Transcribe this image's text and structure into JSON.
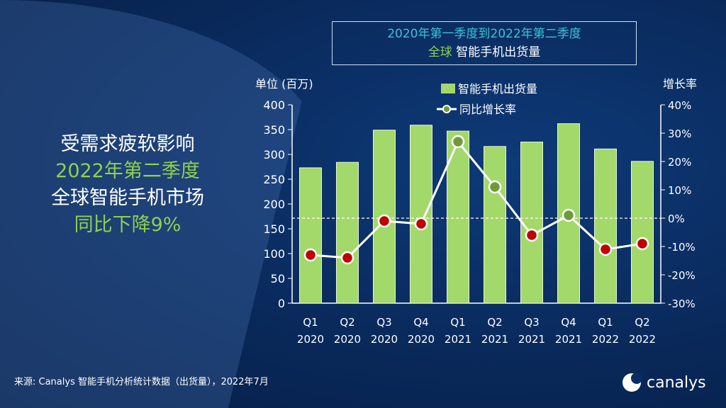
{
  "title": {
    "line1": "2020年第一季度到2022年第二季度",
    "line2_highlight": "全球",
    "line2_rest": " 智能手机出货量"
  },
  "headline": {
    "line1": "受需求疲软影响",
    "line2": "2022年第二季度",
    "line3": "全球智能手机市场",
    "line4": "同比下降9%"
  },
  "source": "来源: Canalys 智能手机分析统计数据（出货量），2022年7月",
  "logo": "canalys",
  "colors": {
    "bar": "#a3d86a",
    "line": "#ffffff",
    "positive_point": "#6f9a3a",
    "negative_point": "#c00000",
    "zero_line": "#ffffff"
  },
  "chart_data": {
    "type": "bar+line",
    "categories": [
      [
        "Q1",
        "2020"
      ],
      [
        "Q2",
        "2020"
      ],
      [
        "Q3",
        "2020"
      ],
      [
        "Q4",
        "2020"
      ],
      [
        "Q1",
        "2021"
      ],
      [
        "Q2",
        "2021"
      ],
      [
        "Q3",
        "2021"
      ],
      [
        "Q4",
        "2021"
      ],
      [
        "Q1",
        "2022"
      ],
      [
        "Q2",
        "2022"
      ]
    ],
    "ylabel_left": "单位 (百万)",
    "ylabel_right": "增长率",
    "ylim_left": [
      0,
      400
    ],
    "yticks_left": [
      "0",
      "50",
      "100",
      "150",
      "200",
      "250",
      "300",
      "350",
      "400"
    ],
    "ylim_right": [
      -30,
      40
    ],
    "yticks_right": [
      "-30%",
      "-20%",
      "-10%",
      "0%",
      "10%",
      "20%",
      "30%",
      "40%"
    ],
    "legend": "top-center",
    "grid": false,
    "series": [
      {
        "name": "智能手机出货量",
        "type": "bar",
        "axis": "left",
        "values": [
          273,
          284,
          349,
          359,
          347,
          316,
          325,
          362,
          311,
          286
        ]
      },
      {
        "name": "同比增长率",
        "type": "line",
        "axis": "right",
        "values": [
          -13,
          -14,
          -1,
          -2,
          27,
          11,
          -6,
          1,
          -11,
          -9
        ]
      }
    ],
    "reference_line": {
      "axis": "right",
      "value": 0,
      "style": "dashed"
    }
  }
}
